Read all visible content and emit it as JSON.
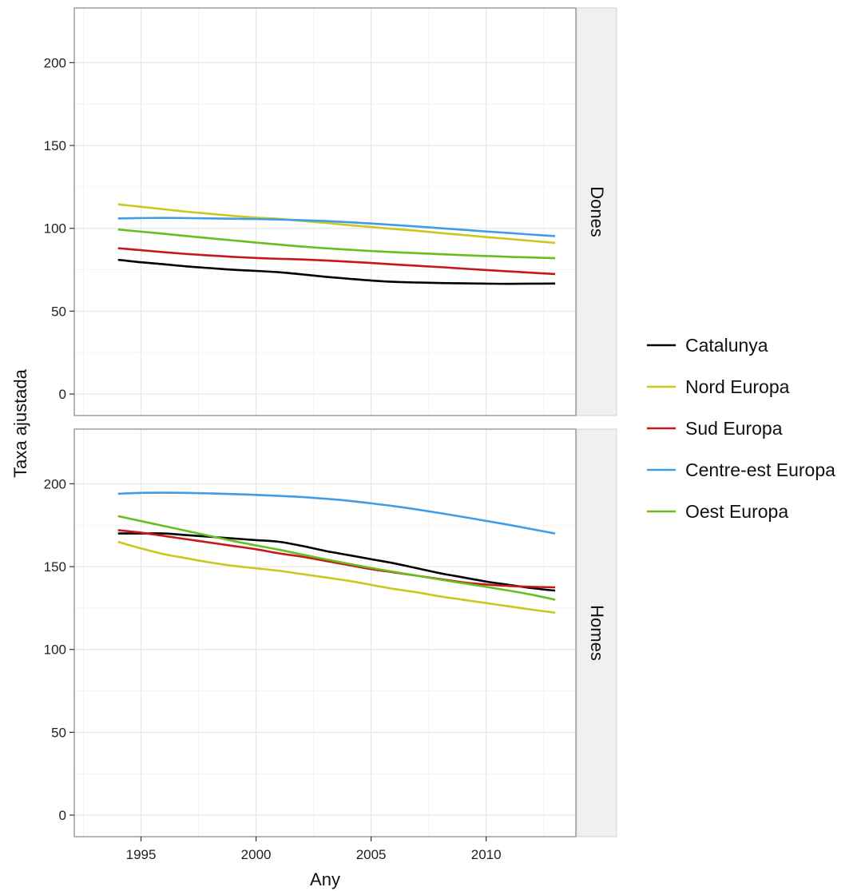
{
  "chart_data": {
    "type": "line",
    "xlabel": "Any",
    "ylabel": "Taxa ajustada",
    "x": [
      1994,
      1995,
      1996,
      1997,
      1998,
      1999,
      2000,
      2001,
      2002,
      2003,
      2004,
      2005,
      2006,
      2007,
      2008,
      2009,
      2010,
      2011,
      2012,
      2013
    ],
    "x_ticks": [
      1995,
      2000,
      2005,
      2010
    ],
    "x_tick_labels": [
      "1995",
      "2000",
      "2005",
      "2010"
    ],
    "xlim": [
      1992.1,
      2013.9
    ],
    "ylim": [
      -13,
      233
    ],
    "y_ticks": [
      0,
      50,
      100,
      150,
      200
    ],
    "y_tick_labels": [
      "0",
      "50",
      "100",
      "150",
      "200"
    ],
    "grid": true,
    "facet_by": "rows",
    "panels": [
      {
        "label": "Dones",
        "series": [
          {
            "name": "Catalunya",
            "color": "#000000",
            "values": [
              81,
              79.5,
              78.3,
              77,
              76,
              75,
              74.3,
              73.5,
              72.2,
              70.8,
              69.6,
              68.5,
              67.7,
              67.3,
              67,
              66.8,
              66.6,
              66.5,
              66.6,
              66.7
            ]
          },
          {
            "name": "Nord Europa",
            "color": "#C9C81B",
            "values": [
              114.5,
              113,
              111.5,
              110,
              108.8,
              107.5,
              106.5,
              105.7,
              104.5,
              103.3,
              102,
              100.8,
              99.6,
              98.5,
              97.2,
              96,
              94.7,
              93.6,
              92.4,
              91.2
            ]
          },
          {
            "name": "Sud Europa",
            "color": "#C8161D",
            "values": [
              88,
              86.8,
              85.6,
              84.5,
              83.6,
              82.8,
              82.1,
              81.6,
              81.2,
              80.6,
              79.9,
              79.1,
              78.2,
              77.4,
              76.6,
              75.7,
              74.8,
              74,
              73.2,
              72.4
            ]
          },
          {
            "name": "Centre-est Europa",
            "color": "#3F9DE8",
            "values": [
              106,
              106.2,
              106.3,
              106.2,
              106,
              105.8,
              105.6,
              105.3,
              104.9,
              104.4,
              103.7,
              102.9,
              102,
              101.1,
              100.1,
              99.1,
              98.1,
              97.2,
              96.2,
              95.3
            ]
          },
          {
            "name": "Oest Europa",
            "color": "#66BF1F",
            "values": [
              99.3,
              98,
              96.7,
              95.3,
              94,
              92.7,
              91.4,
              90.2,
              89,
              88,
              87.1,
              86.3,
              85.6,
              85,
              84.4,
              83.8,
              83.3,
              82.8,
              82.4,
              82
            ]
          }
        ]
      },
      {
        "label": "Homes",
        "series": [
          {
            "name": "Catalunya",
            "color": "#000000",
            "values": [
              170,
              170,
              170,
              169,
              168,
              167,
              166,
              165,
              162.5,
              159.5,
              157,
              154.5,
              152,
              149,
              146,
              143.5,
              141,
              139,
              137,
              135.5
            ]
          },
          {
            "name": "Nord Europa",
            "color": "#C9C81B",
            "values": [
              165,
              161,
              157.5,
              155,
              152.5,
              150.5,
              149,
              147.5,
              145.5,
              143.5,
              141.5,
              139,
              136.5,
              134.5,
              132,
              130,
              128,
              126,
              124,
              122.2
            ]
          },
          {
            "name": "Sud Europa",
            "color": "#C8161D",
            "values": [
              172,
              170.5,
              168.5,
              166.5,
              164.5,
              162.5,
              160.5,
              158,
              156,
              153.5,
              151,
              148.5,
              146.5,
              144.5,
              142.5,
              140.5,
              139.2,
              138.3,
              137.8,
              137.5
            ]
          },
          {
            "name": "Centre-est Europa",
            "color": "#3F9DE8",
            "values": [
              194,
              194.5,
              194.6,
              194.5,
              194.2,
              193.8,
              193.3,
              192.7,
              192,
              191,
              189.8,
              188.2,
              186.5,
              184.5,
              182.3,
              180,
              177.6,
              175.2,
              172.6,
              170
            ]
          },
          {
            "name": "Oest Europa",
            "color": "#66BF1F",
            "values": [
              180.5,
              177.5,
              174.5,
              171.5,
              168.5,
              165.5,
              162.8,
              160.2,
              157.3,
              154.5,
              151.8,
              149.2,
              146.8,
              144.5,
              142.2,
              140,
              137.8,
              135.5,
              133,
              130
            ]
          }
        ]
      }
    ],
    "legend": {
      "position": "right",
      "entries": [
        {
          "label": "Catalunya",
          "color": "#000000"
        },
        {
          "label": "Nord Europa",
          "color": "#C9C81B"
        },
        {
          "label": "Sud Europa",
          "color": "#C8161D"
        },
        {
          "label": "Centre-est Europa",
          "color": "#3F9DE8"
        },
        {
          "label": "Oest Europa",
          "color": "#66BF1F"
        }
      ]
    },
    "colors": {
      "strip_fill": "#F0F0F0",
      "panel_border": "#8E8E8E",
      "grid_major": "#E7E7E7",
      "grid_minor": "#F4F4F4"
    }
  }
}
